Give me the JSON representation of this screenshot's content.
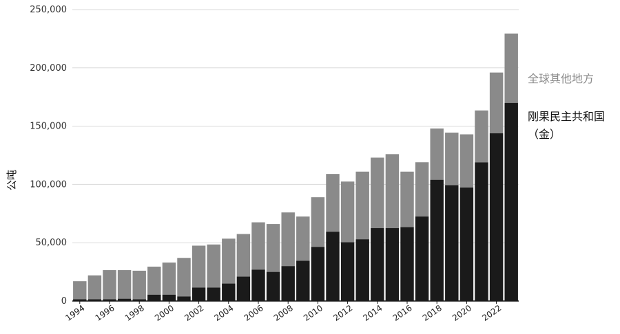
{
  "chart_data": {
    "type": "bar",
    "stacked": true,
    "ylabel": "公吨",
    "ylim": [
      0,
      250000
    ],
    "yticks": [
      0,
      50000,
      100000,
      150000,
      200000,
      250000
    ],
    "ytick_labels": [
      "0",
      "50,000",
      "100,000",
      "150,000",
      "200,000",
      "250,000"
    ],
    "xtick_labels": [
      "1994",
      "1996",
      "1998",
      "2000",
      "2002",
      "2004",
      "2006",
      "2008",
      "2010",
      "2012",
      "2014",
      "2016",
      "2018",
      "2020",
      "2022"
    ],
    "grid": "horizontal",
    "legend_placement": "right",
    "categories": [
      "1994",
      "1995",
      "1996",
      "1997",
      "1998",
      "1999",
      "2000",
      "2001",
      "2002",
      "2003",
      "2004",
      "2005",
      "2006",
      "2007",
      "2008",
      "2009",
      "2010",
      "2011",
      "2012",
      "2013",
      "2014",
      "2015",
      "2016",
      "2017",
      "2018",
      "2019",
      "2020",
      "2021",
      "2022",
      "2023"
    ],
    "series": [
      {
        "name": "刚果民主共和国（金）",
        "color": "#1a1a1a",
        "values": [
          1500,
          1500,
          1500,
          2000,
          1500,
          5500,
          5500,
          4000,
          11500,
          11500,
          15000,
          21000,
          27000,
          25000,
          30000,
          34500,
          46500,
          59500,
          50500,
          53000,
          62500,
          62500,
          63500,
          72500,
          104000,
          99500,
          97500,
          119000,
          144000,
          170000
        ]
      },
      {
        "name": "全球其他地方",
        "color": "#8a8a8a",
        "values": [
          15500,
          20500,
          25000,
          24500,
          24500,
          24000,
          27500,
          33000,
          36000,
          37000,
          38500,
          36500,
          40500,
          41000,
          46000,
          38000,
          42500,
          49500,
          52000,
          58000,
          60500,
          63500,
          47500,
          46500,
          44000,
          45000,
          45500,
          44500,
          52000,
          59500
        ]
      }
    ],
    "legend": {
      "other_label": "全球其他地方",
      "drc_label_line1": "刚果民主共和国",
      "drc_label_line2": "（金）"
    }
  }
}
